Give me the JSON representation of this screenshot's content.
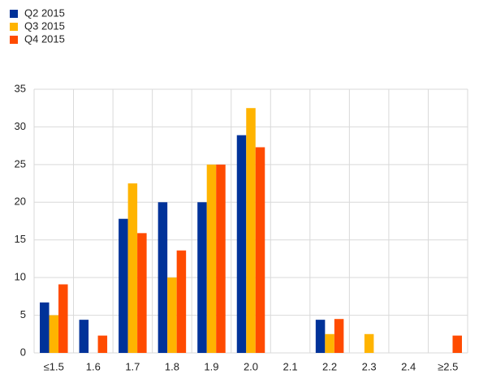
{
  "chart_data": {
    "type": "bar",
    "categories": [
      "≤1.5",
      "1.6",
      "1.7",
      "1.8",
      "1.9",
      "2.0",
      "2.1",
      "2.2",
      "2.3",
      "2.4",
      "≥2.5"
    ],
    "series": [
      {
        "name": "Q2 2015",
        "color": "#003299",
        "values": [
          6.7,
          4.4,
          17.8,
          20,
          20,
          28.9,
          0,
          4.4,
          0,
          0,
          0
        ]
      },
      {
        "name": "Q3 2015",
        "color": "#ffb400",
        "values": [
          5,
          0,
          22.5,
          10,
          25,
          32.5,
          0,
          2.5,
          2.5,
          0,
          0
        ]
      },
      {
        "name": "Q4 2015",
        "color": "#ff4b00",
        "values": [
          9.1,
          2.3,
          15.9,
          13.6,
          25,
          27.3,
          0,
          4.5,
          0,
          0,
          2.3
        ]
      }
    ],
    "ylim": [
      0,
      35
    ],
    "yticks": [
      0,
      5,
      10,
      15,
      20,
      25,
      30,
      35
    ],
    "grid": true,
    "legend": "top-left"
  }
}
